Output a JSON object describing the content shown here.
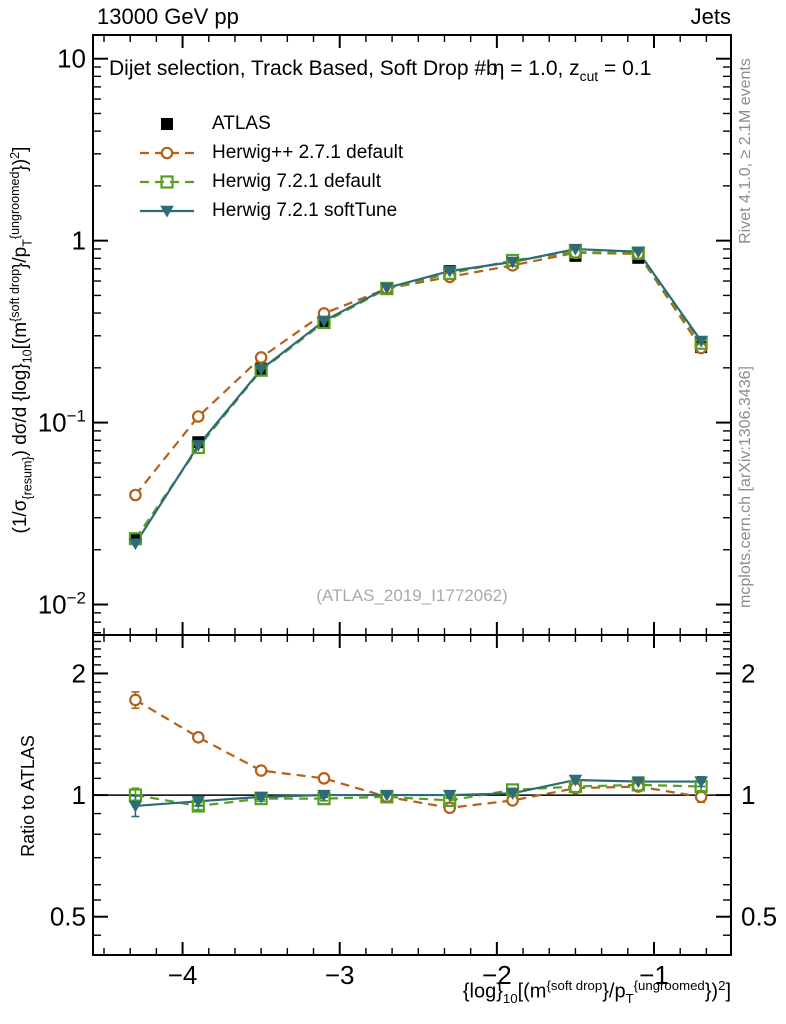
{
  "header": {
    "left": "13000 GeV pp",
    "right": "Jets"
  },
  "side_notes": {
    "rivet": "Rivet 4.1.0, ≥ 2.1M events",
    "mcplots": "mcplots.cern.ch [arXiv:1306.3436]"
  },
  "watermark": "(ATLAS_2019_I1772062)",
  "title_parts": [
    {
      "t": "Dijet selection, Track Based, Soft Drop #b"
    },
    {
      "t": "η",
      "s": "tight"
    },
    {
      "t": " = 1.0, z"
    },
    {
      "t": "cut",
      "s": "sub"
    },
    {
      "t": " = 0.1"
    }
  ],
  "axis_labels": {
    "y_ratio": "Ratio to ATLAS",
    "x_parts": [
      {
        "t": "{log}"
      },
      {
        "t": "10",
        "s": "sub"
      },
      {
        "t": "[(m"
      },
      {
        "t": "{soft drop",
        "s": "sup"
      },
      {
        "t": "}/p"
      },
      {
        "t": "T",
        "s": "sub"
      },
      {
        "t": "{ungroomed",
        "s": "sup"
      },
      {
        "t": "})"
      },
      {
        "t": "2",
        "s": "sup"
      },
      {
        "t": "]"
      }
    ],
    "y_main_parts": [
      {
        "t": "(1/σ"
      },
      {
        "t": "{resum}",
        "s": "sub"
      },
      {
        "t": ") dσ/d {log}"
      },
      {
        "t": "10",
        "s": "sub"
      },
      {
        "t": "[(m"
      },
      {
        "t": "{soft drop",
        "s": "sup"
      },
      {
        "t": "}/p"
      },
      {
        "t": "T",
        "s": "sub"
      },
      {
        "t": "{ungroomed",
        "s": "sup"
      },
      {
        "t": "})"
      },
      {
        "t": "2",
        "s": "sup"
      },
      {
        "t": "]"
      }
    ]
  },
  "chart_data": {
    "type": "line",
    "title": "Dijet selection, Track Based, Soft Drop #bη = 1.0, z_cut = 0.1",
    "xlabel": "{log}_10[(m^{soft drop}/p_T^{ungroomed})^2]",
    "ylabel": "(1/σ_{resum}) dσ/d {log}_10[(m^{soft drop}/p_T^{ungroomed})^2]",
    "ratio_ylabel": "Ratio to ATLAS",
    "yscale": "log",
    "grid": false,
    "legend_position": "top-left",
    "x": [
      -4.3,
      -3.9,
      -3.5,
      -3.1,
      -2.7,
      -2.3,
      -1.9,
      -1.5,
      -1.1,
      -0.7
    ],
    "xlim": [
      -4.57,
      -0.51
    ],
    "ylim_main": [
      0.0068,
      13.5
    ],
    "ylim_ratio": [
      0.402,
      2.49
    ],
    "x_ticks": [
      {
        "v": -4,
        "label": "−4"
      },
      {
        "v": -3,
        "label": "−3"
      },
      {
        "v": -2,
        "label": "−2"
      },
      {
        "v": -1,
        "label": "−1"
      }
    ],
    "y_ticks_main": [
      {
        "v": 10,
        "label": "10"
      },
      {
        "v": 1,
        "label": "1"
      },
      {
        "v": 0.1,
        "label": "10",
        "sup": "−1"
      },
      {
        "v": 0.01,
        "label": "10",
        "sup": "−2"
      }
    ],
    "y_ticks_ratio": [
      {
        "v": 2,
        "label": "2"
      },
      {
        "v": 1,
        "label": "1"
      },
      {
        "v": 0.5,
        "label": "0.5"
      }
    ],
    "y_minor_ratio": [
      0.45,
      0.55,
      0.6,
      0.7,
      0.8,
      0.9,
      1.1,
      1.2,
      1.3,
      1.4,
      1.5,
      1.6,
      1.7,
      1.8,
      1.9,
      2.1,
      2.2,
      2.3,
      2.4
    ],
    "series": [
      {
        "name": "ATLAS",
        "color": "#000000",
        "marker": "filled-square",
        "line": "none",
        "values": [
          0.023,
          0.078,
          0.198,
          0.362,
          0.55,
          0.68,
          0.755,
          0.825,
          0.805,
          0.26
        ],
        "ratio": null
      },
      {
        "name": "Herwig++ 2.7.1 default",
        "color": "#b4601a",
        "marker": "open-circle",
        "line": "dashed",
        "values": [
          0.04,
          0.108,
          0.228,
          0.398,
          0.545,
          0.632,
          0.732,
          0.858,
          0.845,
          0.257
        ],
        "ratio": [
          1.72,
          1.39,
          1.15,
          1.1,
          0.99,
          0.93,
          0.97,
          1.04,
          1.05,
          0.99
        ],
        "ratio_err": [
          0.08,
          0.03,
          0.02,
          0.015,
          0.012,
          0.015,
          0.012,
          0.012,
          0.012,
          0.03
        ]
      },
      {
        "name": "Herwig 7.2.1 default",
        "color": "#55a021",
        "marker": "open-square",
        "line": "dashed",
        "values": [
          0.023,
          0.073,
          0.194,
          0.355,
          0.545,
          0.66,
          0.778,
          0.866,
          0.853,
          0.273
        ],
        "ratio": [
          1.0,
          0.94,
          0.98,
          0.98,
          0.99,
          0.97,
          1.03,
          1.05,
          1.06,
          1.05
        ],
        "ratio_err": [
          0.04,
          0.02,
          0.015,
          0.012,
          0.01,
          0.012,
          0.01,
          0.01,
          0.01,
          0.025
        ]
      },
      {
        "name": "Herwig 7.2.1 softTune",
        "color": "#2d6b76",
        "marker": "filled-triangle-down",
        "line": "solid",
        "values": [
          0.0216,
          0.075,
          0.196,
          0.362,
          0.55,
          0.68,
          0.763,
          0.899,
          0.869,
          0.281
        ],
        "ratio": [
          0.94,
          0.965,
          0.99,
          1.0,
          1.0,
          1.0,
          1.01,
          1.09,
          1.08,
          1.08
        ],
        "ratio_err": [
          0.055,
          0.025,
          0.015,
          0.012,
          0.01,
          0.012,
          0.01,
          0.012,
          0.012,
          0.03
        ]
      }
    ]
  }
}
